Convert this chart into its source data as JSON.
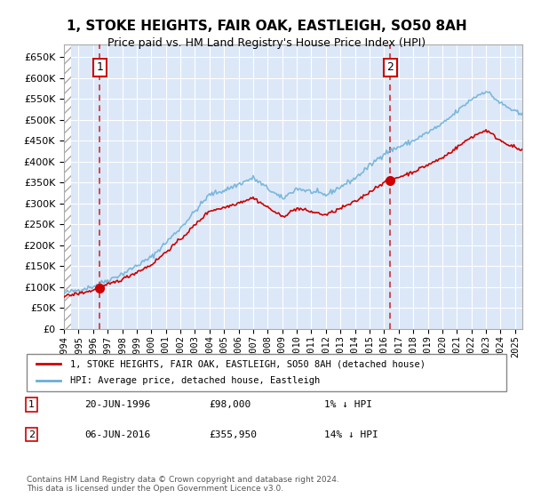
{
  "title": "1, STOKE HEIGHTS, FAIR OAK, EASTLEIGH, SO50 8AH",
  "subtitle": "Price paid vs. HM Land Registry's House Price Index (HPI)",
  "legend_line1": "1, STOKE HEIGHTS, FAIR OAK, EASTLEIGH, SO50 8AH (detached house)",
  "legend_line2": "HPI: Average price, detached house, Eastleigh",
  "annotation1_label": "1",
  "annotation1_date": "20-JUN-1996",
  "annotation1_price": "£98,000",
  "annotation1_hpi": "1% ↓ HPI",
  "annotation2_label": "2",
  "annotation2_date": "06-JUN-2016",
  "annotation2_price": "£355,950",
  "annotation2_hpi": "14% ↓ HPI",
  "footnote": "Contains HM Land Registry data © Crown copyright and database right 2024.\nThis data is licensed under the Open Government Licence v3.0.",
  "sale1_year": 1996.47,
  "sale1_value": 98000,
  "sale2_year": 2016.43,
  "sale2_value": 355950,
  "hpi_color": "#6baed6",
  "sale_color": "#cc0000",
  "dashed_line_color": "#cc0000",
  "background_hatch_color": "#d0d8e8",
  "plot_bg_color": "#dce8f8",
  "ylim_min": 0,
  "ylim_max": 680000,
  "xlim_min": 1994,
  "xlim_max": 2025.5
}
